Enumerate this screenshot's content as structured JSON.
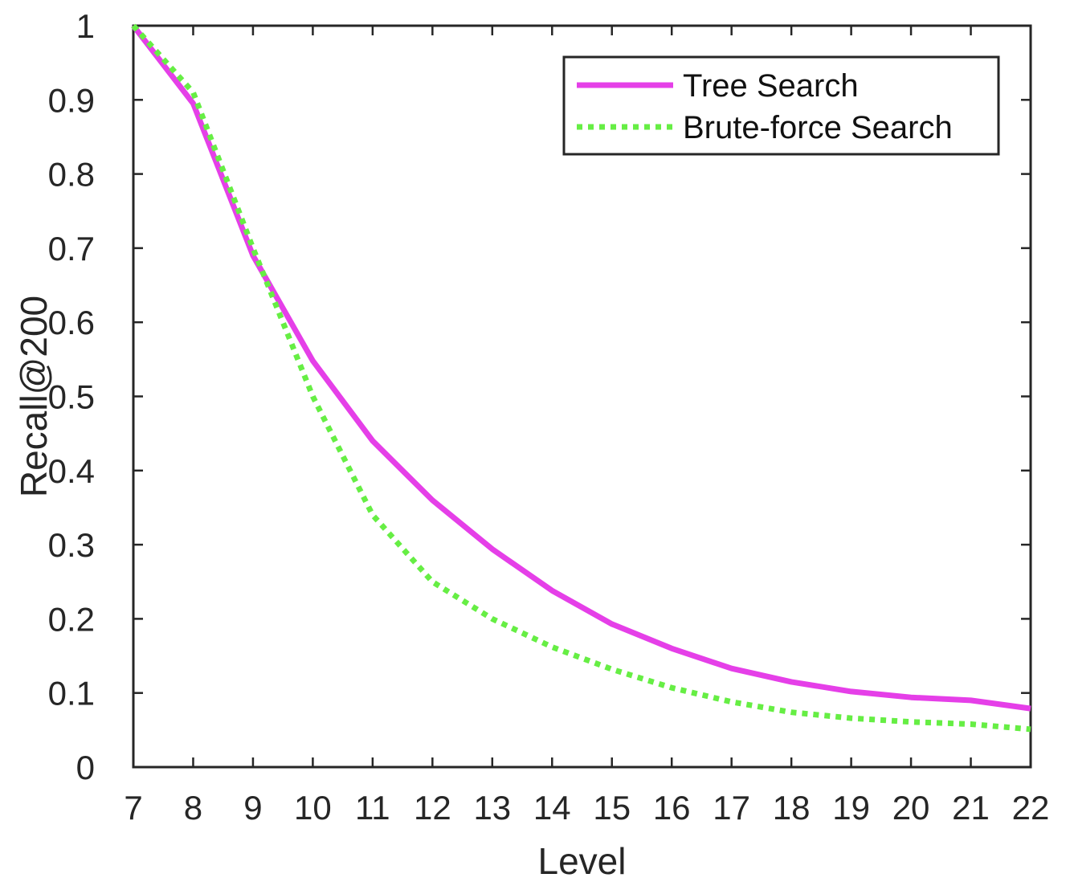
{
  "chart_data": {
    "type": "line",
    "title": "",
    "xlabel": "Level",
    "ylabel": "Recall@200",
    "x": [
      7,
      8,
      9,
      10,
      11,
      12,
      13,
      14,
      15,
      16,
      17,
      18,
      19,
      20,
      21,
      22
    ],
    "xlim": [
      7,
      22
    ],
    "ylim": [
      0,
      1
    ],
    "x_ticks": [
      "7",
      "8",
      "9",
      "10",
      "11",
      "12",
      "13",
      "14",
      "15",
      "16",
      "17",
      "18",
      "19",
      "20",
      "21",
      "22"
    ],
    "y_ticks": [
      "0",
      "0.1",
      "0.2",
      "0.3",
      "0.4",
      "0.5",
      "0.6",
      "0.7",
      "0.8",
      "0.9",
      "1"
    ],
    "grid": false,
    "legend_position": "top-right",
    "series": [
      {
        "name": "Tree Search",
        "style": "solid",
        "color": "#E53FE8",
        "values": [
          1.0,
          0.895,
          0.69,
          0.548,
          0.44,
          0.36,
          0.294,
          0.238,
          0.193,
          0.16,
          0.133,
          0.115,
          0.102,
          0.094,
          0.09,
          0.079
        ]
      },
      {
        "name": "Brute-force Search",
        "style": "dotted",
        "color": "#66EE44",
        "values": [
          1.0,
          0.91,
          0.7,
          0.5,
          0.34,
          0.25,
          0.2,
          0.162,
          0.132,
          0.107,
          0.088,
          0.074,
          0.066,
          0.061,
          0.058,
          0.051
        ]
      }
    ]
  }
}
